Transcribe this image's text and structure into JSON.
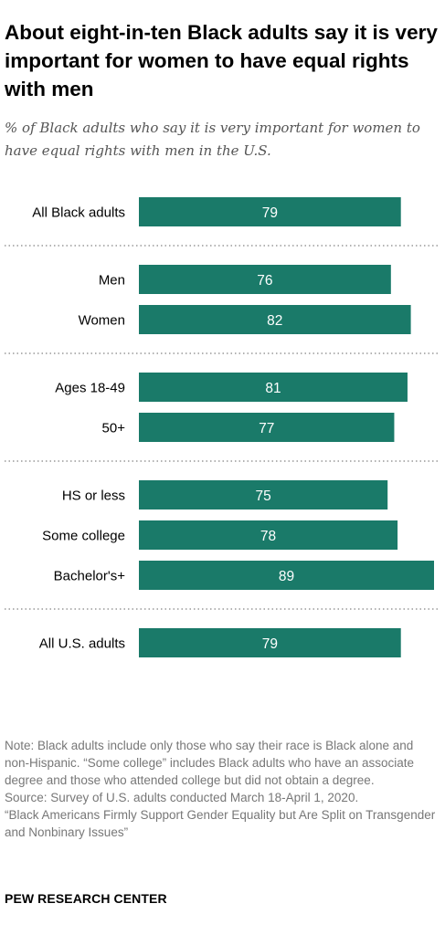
{
  "title": "About eight-in-ten Black adults say it is very important for women to have equal rights with men",
  "subtitle": "% of Black adults who say it is very important for women to have equal rights with men in the U.S.",
  "chart_data": {
    "type": "bar",
    "orientation": "horizontal",
    "groups": [
      {
        "categories": [
          "All Black adults"
        ],
        "values": [
          79
        ]
      },
      {
        "categories": [
          "Men",
          "Women"
        ],
        "values": [
          76,
          82
        ]
      },
      {
        "categories": [
          "Ages 18-49",
          "50+"
        ],
        "values": [
          81,
          77
        ]
      },
      {
        "categories": [
          "HS or less",
          "Some college",
          "Bachelor's+"
        ],
        "values": [
          75,
          78,
          89
        ]
      },
      {
        "categories": [
          "All U.S. adults"
        ],
        "values": [
          79
        ]
      }
    ],
    "xlim": [
      0,
      89
    ],
    "bar_color": "#1a7a69",
    "value_color": "#ffffff",
    "separator_color": "#999999",
    "data_labels": true,
    "grid": false,
    "legend": "none"
  },
  "notes": [
    "Note: Black adults include only those who say their race is Black alone and non-Hispanic. “Some college” includes Black adults who have an associate degree and those who attended college but did not obtain a degree.",
    "Source: Survey of U.S. adults conducted March 18-April 1, 2020.",
    "“Black Americans Firmly Support Gender Equality but Are Split on Transgender and Nonbinary Issues”"
  ],
  "brand": "PEW RESEARCH CENTER"
}
